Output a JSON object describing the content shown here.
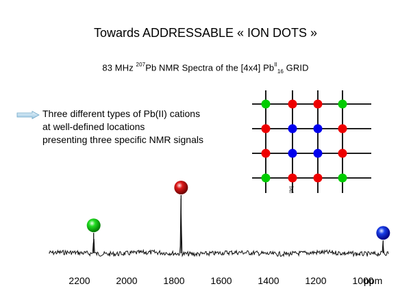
{
  "slide": {
    "title": "Towards  ADDRESSABLE  «  ION  DOTS  »",
    "subtitle": {
      "prefix": "83 MHz ",
      "isotope_mass": "207",
      "isotope": "Pb",
      "middle": "  NMR  Spectra of the [4x4] Pb",
      "ox_state": "II",
      "count": "16",
      "suffix": "  GRID"
    },
    "bullet_lines": [
      "Three different types of Pb(II) cations",
      "at well-defined locations",
      "presenting three specific NMR signals"
    ],
    "grid_label": "[8d]",
    "grid_colors": [
      [
        "#00cc00",
        "#ee0000",
        "#ee0000",
        "#00cc00"
      ],
      [
        "#ee0000",
        "#0000ee",
        "#0000ee",
        "#ee0000"
      ],
      [
        "#ee0000",
        "#0000ee",
        "#0000ee",
        "#ee0000"
      ],
      [
        "#00cc00",
        "#ee0000",
        "#ee0000",
        "#00cc00"
      ]
    ],
    "colors": {
      "green": "#00cc00",
      "red": "#cc0000",
      "blue": "#0000cc"
    }
  },
  "chart_data": {
    "type": "line",
    "title": "",
    "xlabel": "ppm",
    "xlim": [
      2330,
      890
    ],
    "x_reversed": true,
    "x_ticks": [
      2200,
      2000,
      1800,
      1600,
      1400,
      1200,
      1000
    ],
    "peaks": [
      {
        "position_ppm": 2140,
        "relative_intensity": 0.35,
        "marker_color": "#00cc00",
        "marker": "green-sphere"
      },
      {
        "position_ppm": 1770,
        "relative_intensity": 1.0,
        "marker_color": "#cc0000",
        "marker": "red-sphere"
      },
      {
        "position_ppm": 915,
        "relative_intensity": 0.22,
        "marker_color": "#0000cc",
        "marker": "blue-sphere"
      }
    ]
  }
}
